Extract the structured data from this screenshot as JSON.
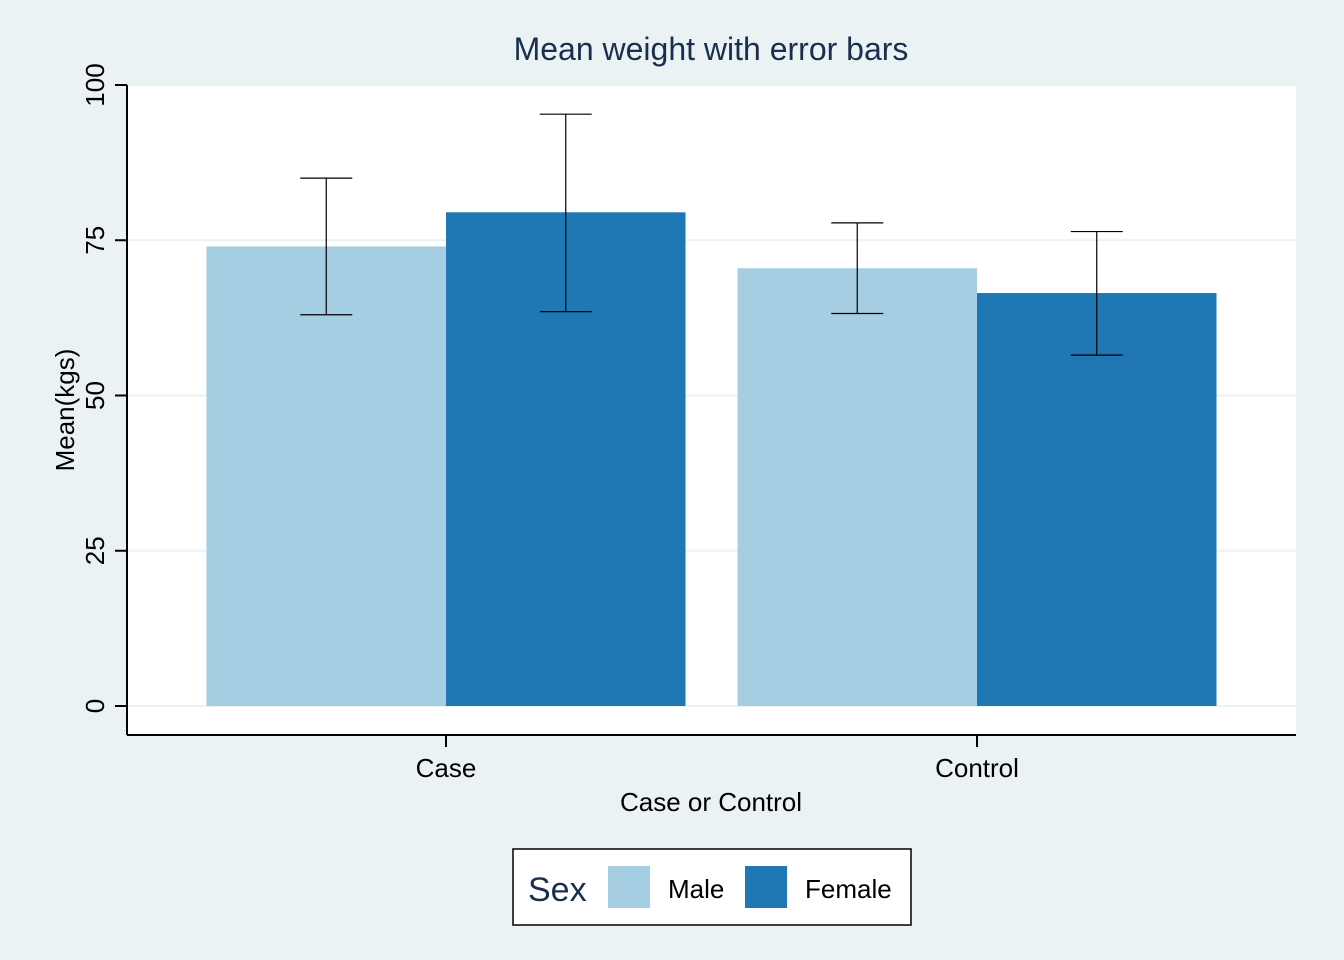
{
  "chart_data": {
    "type": "bar",
    "title": "Mean weight with error bars",
    "xlabel": "Case or Control",
    "ylabel": "Mean(kgs)",
    "ylim": [
      0,
      100
    ],
    "yticks": [
      0,
      25,
      50,
      75,
      100
    ],
    "categories": [
      "Case",
      "Control"
    ],
    "series": [
      {
        "name": "Male",
        "color": "#a6cee3",
        "values": [
          74,
          70.5
        ],
        "error_low": [
          63,
          63.2
        ],
        "error_high": [
          85,
          77.8
        ]
      },
      {
        "name": "Female",
        "color": "#1f78b4",
        "values": [
          79.5,
          66.5
        ],
        "error_low": [
          63.5,
          56.5
        ],
        "error_high": [
          95.3,
          76.4
        ]
      }
    ],
    "grid": true,
    "legend": {
      "title": "Sex",
      "position": "bottom"
    }
  }
}
